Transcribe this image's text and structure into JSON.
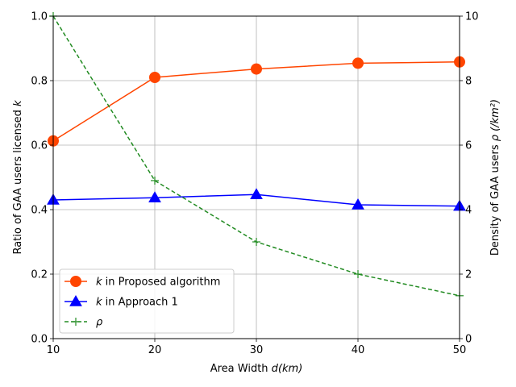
{
  "chart_data": {
    "type": "line",
    "x": [
      10,
      20,
      30,
      40,
      50
    ],
    "xlabel": {
      "prefix": "Area Width ",
      "var": "d",
      "suffix": "(km)"
    },
    "xlim": [
      10,
      50
    ],
    "xticks": [
      "10",
      "20",
      "30",
      "40",
      "50"
    ],
    "ylabel_left": {
      "prefix": "Ratio of GAA users licensed ",
      "var": "k",
      "suffix": ""
    },
    "ylim_left": [
      0,
      1.0
    ],
    "yticks_left": [
      "0.0",
      "0.2",
      "0.4",
      "0.6",
      "0.8",
      "1.0"
    ],
    "ylabel_right": {
      "prefix": "Density of GAA users ",
      "var": "ρ",
      "suffix": " (/km²)"
    },
    "ylim_right": [
      0,
      10
    ],
    "yticks_right": [
      "0",
      "2",
      "4",
      "6",
      "8",
      "10"
    ],
    "grid": true,
    "legend_position": "lower-left",
    "series": [
      {
        "name": {
          "var": "k",
          "text": " in Proposed algorithm"
        },
        "axis": "left",
        "values": [
          0.613,
          0.81,
          0.836,
          0.854,
          0.858
        ],
        "color": "#ff4500",
        "marker": "circle",
        "line": "solid"
      },
      {
        "name": {
          "var": "k",
          "text": " in Approach 1"
        },
        "axis": "left",
        "values": [
          0.43,
          0.437,
          0.447,
          0.415,
          0.411
        ],
        "color": "#0000ff",
        "marker": "triangle",
        "line": "solid"
      },
      {
        "name": {
          "var": "ρ",
          "text": ""
        },
        "axis": "right",
        "values": [
          10.0,
          4.9,
          3.0,
          2.0,
          1.33
        ],
        "color": "#228b22",
        "marker": "plus",
        "line": "dashed"
      }
    ]
  }
}
